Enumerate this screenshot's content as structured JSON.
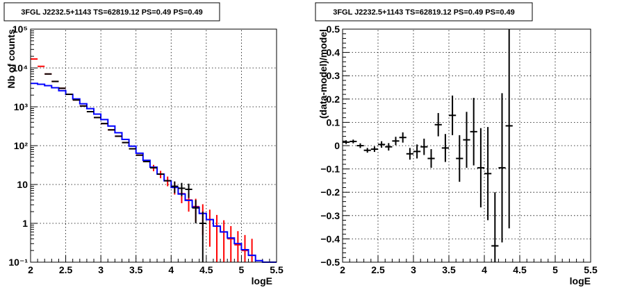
{
  "chart_data": [
    {
      "type": "line",
      "title": "3FGL J2232.5+1143 TS=62819.12 PS=0.49 PS=0.49",
      "xlabel": "logE",
      "ylabel": "Nb of counts",
      "xlim": [
        2,
        5.5
      ],
      "ylim": [
        0.1,
        100000
      ],
      "yscale": "log",
      "grid": true,
      "x_ticks": [
        "2",
        "2.5",
        "3",
        "3.5",
        "4",
        "4.5",
        "5",
        "5.5"
      ],
      "y_ticks": [
        "10⁻¹",
        "1",
        "10",
        "10²",
        "10³",
        "10⁴",
        "10⁵"
      ],
      "bin_edges": [
        2.0,
        2.1,
        2.2,
        2.3,
        2.4,
        2.5,
        2.6,
        2.7,
        2.8,
        2.9,
        3.0,
        3.1,
        3.2,
        3.3,
        3.4,
        3.5,
        3.6,
        3.7,
        3.8,
        3.9,
        4.0,
        4.1,
        4.2,
        4.3,
        4.4,
        4.5,
        4.6,
        4.7,
        4.8,
        4.9,
        5.0,
        5.1,
        5.2,
        5.3,
        5.4,
        5.5
      ],
      "series": [
        {
          "color": "#ff0000",
          "type": "errorbar",
          "x": [
            2.05,
            2.15,
            2.25,
            2.35,
            2.45,
            2.55,
            2.65,
            2.75,
            2.85,
            2.95,
            3.05,
            3.15,
            3.25,
            3.35,
            3.45,
            3.55,
            3.65,
            3.75,
            3.85,
            3.95,
            4.05,
            4.15,
            4.25,
            4.35,
            4.45,
            4.55,
            4.65,
            4.75,
            4.85,
            4.95,
            5.05,
            5.15
          ],
          "y": [
            17000,
            11000,
            7000,
            4500,
            3000,
            2100,
            1500,
            1050,
            750,
            530,
            370,
            255,
            175,
            120,
            83,
            57,
            39,
            27,
            18.5,
            12.5,
            8.5,
            5.8,
            4.0,
            2.7,
            1.8,
            1.25,
            0.85,
            0.6,
            0.4,
            0.28,
            0.2,
            0.15
          ],
          "yerr": [
            0,
            0,
            0,
            0,
            0,
            0,
            0,
            0,
            0,
            0,
            0,
            0,
            0,
            0,
            0,
            0,
            0,
            5,
            4,
            3.5,
            3,
            2.5,
            2,
            1.6,
            1.3,
            1.0,
            0.8,
            0.6,
            0.45,
            0.35,
            0.3,
            0.25
          ]
        },
        {
          "color": "#0000ff",
          "type": "step",
          "y": [
            4000,
            3800,
            3500,
            3100,
            2600,
            2100,
            1600,
            1200,
            900,
            650,
            470,
            320,
            215,
            145,
            97,
            64,
            42,
            28,
            18.5,
            12.5,
            8.4,
            5.7,
            3.9,
            2.6,
            1.8,
            1.25,
            0.85,
            0.6,
            0.42,
            0.3,
            0.21,
            0.15,
            0.11,
            0.1,
            0.1
          ]
        },
        {
          "color": "#000000",
          "type": "errorbar",
          "x": [
            2.25,
            2.35,
            2.45,
            2.55,
            2.65,
            2.75,
            2.85,
            2.95,
            3.05,
            3.15,
            3.25,
            3.35,
            3.45,
            3.55,
            3.65,
            3.75,
            3.85,
            3.95,
            4.05,
            4.15,
            4.25,
            4.35,
            4.45
          ],
          "y": [
            7000,
            4500,
            3000,
            2100,
            1500,
            1050,
            750,
            530,
            370,
            255,
            175,
            120,
            83,
            57,
            39,
            27,
            18.5,
            12.5,
            9,
            8,
            7.5,
            2.5,
            1
          ],
          "yerr": [
            0,
            0,
            0,
            0,
            0,
            0,
            0,
            0,
            0,
            0,
            0,
            0,
            0,
            0,
            0,
            0,
            0,
            0,
            3,
            3,
            3,
            1.5,
            1.0
          ]
        }
      ]
    },
    {
      "type": "scatter",
      "title": "3FGL J2232.5+1143 TS=62819.12 PS=0.49 PS=0.49",
      "xlabel": "logE",
      "ylabel": "(data-model)/model",
      "xlim": [
        2,
        5.5
      ],
      "ylim": [
        -0.5,
        0.5
      ],
      "grid": true,
      "x_ticks": [
        "2",
        "2.5",
        "3",
        "3.5",
        "4",
        "4.5",
        "5",
        "5.5"
      ],
      "y_ticks": [
        "−0.5",
        "−0.4",
        "−0.3",
        "−0.2",
        "−0.1",
        "0",
        "0.1",
        "0.2",
        "0.3",
        "0.4",
        "0.5"
      ],
      "series": [
        {
          "color": "#000000",
          "x": [
            2.05,
            2.15,
            2.25,
            2.35,
            2.45,
            2.55,
            2.65,
            2.75,
            2.85,
            2.95,
            3.05,
            3.15,
            3.25,
            3.35,
            3.45,
            3.55,
            3.65,
            3.75,
            3.85,
            3.95,
            4.05,
            4.15,
            4.25,
            4.35
          ],
          "y": [
            0.015,
            0.018,
            0.0,
            -0.02,
            -0.015,
            0.005,
            -0.005,
            0.02,
            0.035,
            -0.035,
            -0.025,
            -0.005,
            -0.055,
            0.09,
            -0.01,
            0.13,
            -0.055,
            0.025,
            0.06,
            -0.095,
            -0.12,
            -0.43,
            -0.095,
            0.085
          ],
          "yerr": [
            0.008,
            0.008,
            0.01,
            0.01,
            0.012,
            0.014,
            0.016,
            0.018,
            0.022,
            0.025,
            0.03,
            0.035,
            0.04,
            0.05,
            0.06,
            0.085,
            0.1,
            0.12,
            0.145,
            0.17,
            0.2,
            0.23,
            0.32,
            0.44
          ]
        }
      ]
    }
  ]
}
